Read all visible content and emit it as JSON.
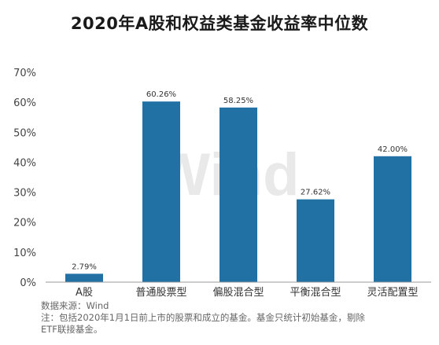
{
  "title": "2020年A股和权益类基金收益率中位数",
  "watermark": "Wind",
  "notes": {
    "source": "数据来源：Wind",
    "note_line1": "注：包括2020年1月1日前上市的股票和成立的基金。基金只统计初始基金，剔除",
    "note_line2": "ETF联接基金。"
  },
  "colors": {
    "bar": "#2171a5",
    "axis": "#999999",
    "grid": "#dddddd"
  },
  "chart_data": {
    "type": "bar",
    "title": "2020年A股和权益类基金收益率中位数",
    "xlabel": "",
    "ylabel": "",
    "categories": [
      "A股",
      "普通股票型",
      "偏股混合型",
      "平衡混合型",
      "灵活配置型"
    ],
    "values": [
      2.79,
      60.26,
      58.25,
      27.62,
      42.0
    ],
    "data_labels": [
      "2.79%",
      "60.26%",
      "58.25%",
      "27.62%",
      "42.00%"
    ],
    "unit": "%",
    "ylim": [
      0,
      70
    ],
    "yticks": [
      0,
      10,
      20,
      30,
      40,
      50,
      60,
      70
    ],
    "ytick_labels": [
      "0%",
      "10%",
      "20%",
      "30%",
      "40%",
      "50%",
      "60%",
      "70%"
    ],
    "grid": false,
    "legend": "none"
  }
}
